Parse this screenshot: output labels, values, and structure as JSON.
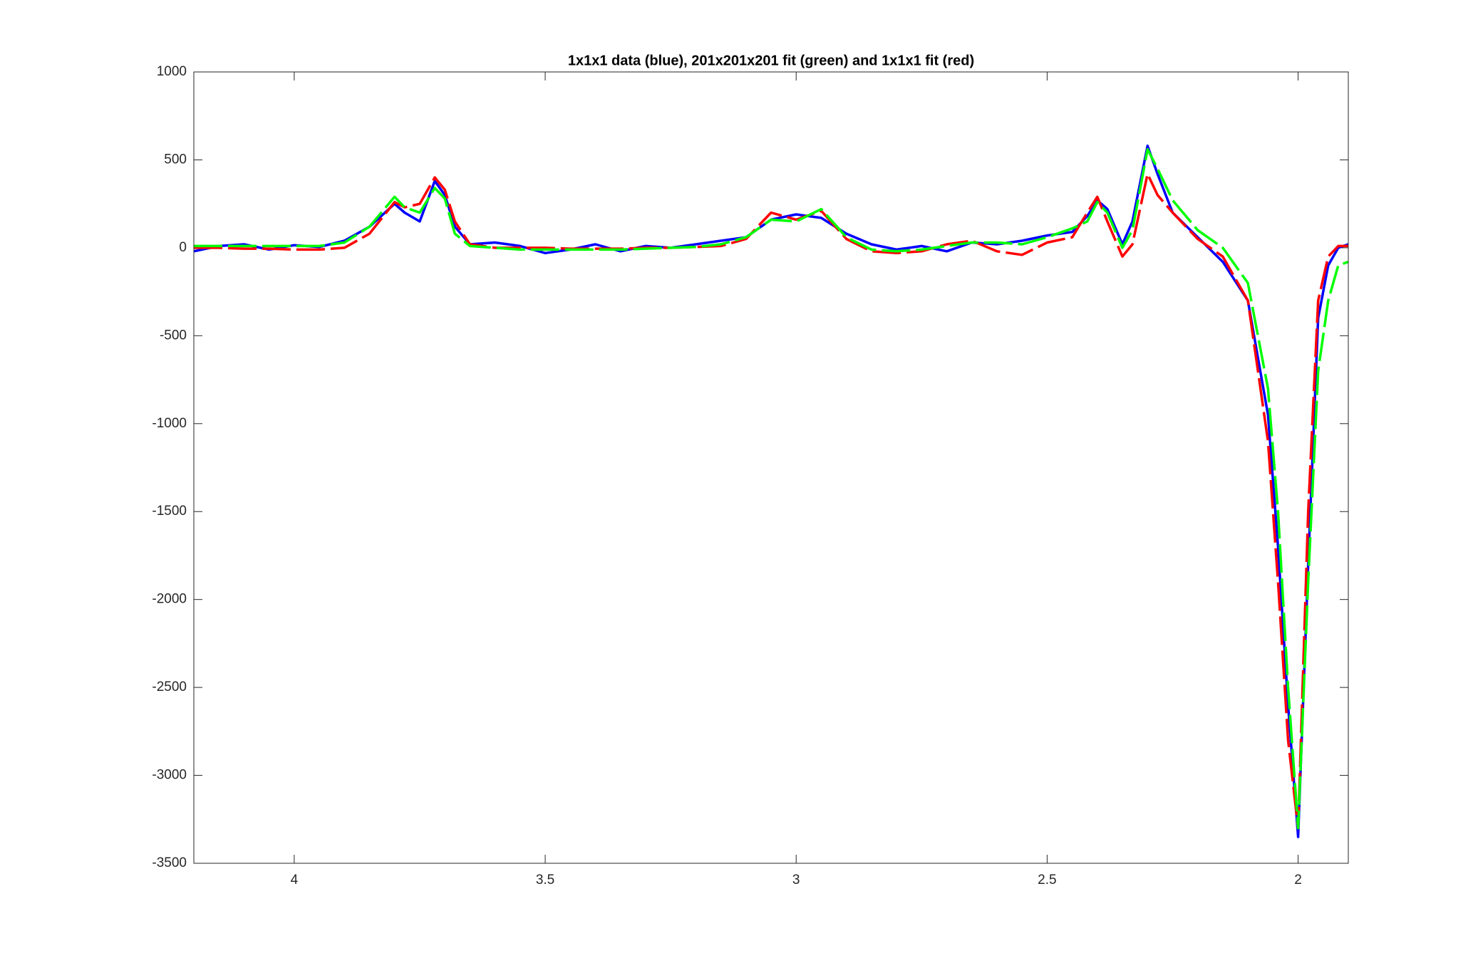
{
  "chart_data": {
    "type": "line",
    "title": "1x1x1 data (blue), 201x201x201 fit (green) and 1x1x1 fit (red)",
    "x": [
      4.2,
      4.15,
      4.1,
      4.05,
      4.0,
      3.95,
      3.9,
      3.85,
      3.8,
      3.78,
      3.75,
      3.72,
      3.7,
      3.68,
      3.65,
      3.6,
      3.55,
      3.5,
      3.45,
      3.4,
      3.35,
      3.3,
      3.25,
      3.2,
      3.15,
      3.1,
      3.05,
      3.0,
      2.95,
      2.9,
      2.85,
      2.8,
      2.75,
      2.7,
      2.65,
      2.6,
      2.55,
      2.5,
      2.45,
      2.42,
      2.4,
      2.38,
      2.35,
      2.33,
      2.3,
      2.28,
      2.25,
      2.2,
      2.15,
      2.1,
      2.06,
      2.04,
      2.02,
      2.0,
      1.98,
      1.96,
      1.94,
      1.92,
      1.9
    ],
    "series": [
      {
        "color": "#0000ff",
        "line_style": "solid",
        "values": [
          -20,
          10,
          20,
          -10,
          15,
          5,
          40,
          120,
          250,
          200,
          150,
          380,
          300,
          120,
          20,
          30,
          10,
          -30,
          -10,
          20,
          -20,
          10,
          0,
          20,
          40,
          60,
          160,
          190,
          170,
          80,
          20,
          -10,
          10,
          -20,
          30,
          20,
          40,
          70,
          90,
          180,
          270,
          220,
          20,
          150,
          580,
          420,
          200,
          60,
          -80,
          -300,
          -950,
          -1700,
          -2600,
          -3350,
          -1800,
          -400,
          -100,
          0,
          20
        ]
      },
      {
        "color": "#ff0000",
        "line_style": "dashed",
        "values": [
          0,
          0,
          -5,
          -5,
          -10,
          -10,
          0,
          80,
          260,
          230,
          250,
          400,
          330,
          150,
          20,
          0,
          0,
          0,
          -5,
          -5,
          -5,
          0,
          0,
          5,
          10,
          50,
          200,
          160,
          210,
          50,
          -20,
          -30,
          -20,
          20,
          40,
          -20,
          -40,
          30,
          60,
          200,
          290,
          150,
          -50,
          20,
          420,
          300,
          200,
          50,
          -50,
          -300,
          -1100,
          -1900,
          -2800,
          -3300,
          -1500,
          -300,
          -50,
          10,
          10
        ]
      },
      {
        "color": "#00ff00",
        "line_style": "dashed",
        "values": [
          10,
          10,
          10,
          10,
          10,
          10,
          30,
          120,
          290,
          230,
          200,
          340,
          280,
          80,
          10,
          0,
          -10,
          -10,
          -10,
          -10,
          -10,
          -5,
          0,
          5,
          20,
          60,
          160,
          150,
          220,
          60,
          -10,
          -20,
          -10,
          10,
          30,
          30,
          20,
          60,
          110,
          150,
          260,
          200,
          0,
          100,
          560,
          450,
          270,
          100,
          0,
          -200,
          -800,
          -1500,
          -2500,
          -3300,
          -1900,
          -700,
          -300,
          -100,
          -80
        ]
      }
    ],
    "xlim": [
      4.2,
      1.9
    ],
    "xticks": [
      4,
      3.5,
      3,
      2.5,
      2
    ],
    "ylim": [
      -3500,
      1000
    ],
    "yticks": [
      -3500,
      -3000,
      -2500,
      -2000,
      -1500,
      -1000,
      -500,
      0,
      500,
      1000
    ]
  }
}
